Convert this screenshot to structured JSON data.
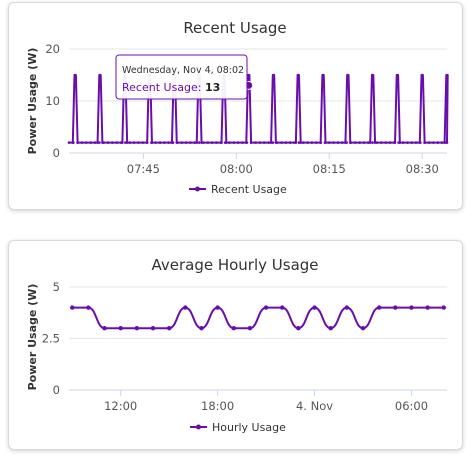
{
  "chart_data": [
    {
      "type": "line",
      "title": "Recent Usage",
      "ylabel": "Power Usage (W)",
      "xlabel": "",
      "ylim": [
        0,
        20
      ],
      "yticks": [
        "0",
        "10",
        "20"
      ],
      "xticks": [
        "07:45",
        "08:00",
        "08:15",
        "08:30"
      ],
      "grid": true,
      "legend_position": "bottom-center",
      "series": [
        {
          "name": "Recent Usage",
          "color": "#6a0dad",
          "x_range": [
            "07:33",
            "08:34"
          ],
          "baseline_value": 2,
          "peak_value": 15,
          "spike_times": [
            "07:34",
            "07:38",
            "07:42",
            "07:46",
            "07:50",
            "07:54",
            "07:58",
            "08:02",
            "08:06",
            "08:10",
            "08:14",
            "08:18",
            "08:22",
            "08:26",
            "08:30",
            "08:34"
          ]
        }
      ],
      "tooltip": {
        "date": "Wednesday, Nov 4, 08:02",
        "series": "Recent Usage",
        "value": "13",
        "time": "08:02"
      }
    },
    {
      "type": "line",
      "title": "Average Hourly Usage",
      "ylabel": "Power Usage (W)",
      "xlabel": "",
      "ylim": [
        0,
        5
      ],
      "yticks": [
        "0",
        "2.5",
        "5"
      ],
      "xticks": [
        "12:00",
        "18:00",
        "4. Nov",
        "06:00"
      ],
      "grid": true,
      "legend_position": "bottom-center",
      "series": [
        {
          "name": "Hourly Usage",
          "color": "#6a0dad",
          "x": [
            "Nov 3 09:00",
            "Nov 3 10:00",
            "Nov 3 11:00",
            "Nov 3 12:00",
            "Nov 3 13:00",
            "Nov 3 14:00",
            "Nov 3 15:00",
            "Nov 3 16:00",
            "Nov 3 17:00",
            "Nov 3 18:00",
            "Nov 3 19:00",
            "Nov 3 20:00",
            "Nov 3 21:00",
            "Nov 3 22:00",
            "Nov 3 23:00",
            "Nov 4 00:00",
            "Nov 4 01:00",
            "Nov 4 02:00",
            "Nov 4 03:00",
            "Nov 4 04:00",
            "Nov 4 05:00",
            "Nov 4 06:00",
            "Nov 4 07:00",
            "Nov 4 08:00"
          ],
          "values": [
            4,
            4,
            3,
            3,
            3,
            3,
            3,
            4,
            3,
            4,
            3,
            3,
            4,
            4,
            3,
            4,
            3,
            4,
            3,
            4,
            4,
            4,
            4,
            4
          ]
        }
      ]
    }
  ]
}
